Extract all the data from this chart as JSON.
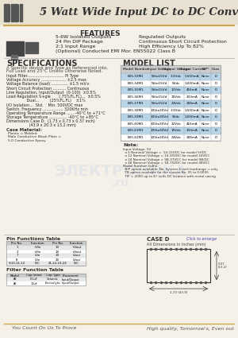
{
  "title": "5 Watt Wide Input DC to DC Converters",
  "bg_color": "#f5f0e8",
  "header_line_color": "#c8a84b",
  "features_title": "FEATURES",
  "features_left": [
    "5-6W Isolated Outputs",
    "24 Pin DIP Package",
    "2:1 Input Range",
    "(Optional) Conducted EMI Mor. EN55022 Class B"
  ],
  "features_right": [
    "Regulated Outputs",
    "Continuous Short Circuit Protection",
    "High Efficiency Up To 82%"
  ],
  "specs_title": "SPECIFICATIONS",
  "specs_subtitle": "A Specific device and Type as Referenced into,",
  "specs_subtitle2": "Full Load and 25°C Unless Otherwise Noted.",
  "specs": [
    "Input Filter............................... Pi Type",
    "Voltage Accuracy ..................... ±2.5 max",
    "Voltage Balance (load) .............. ±1.5 mV+",
    "Short Circuit Protection ........... Continuous",
    "Line Regulation, Input/Output  (0-100)  ±0.5%",
    "Load Regulation S+gle       (.75%FL,FL)...  ±0.5%",
    "                 Dual...         (25%FL,FL)    ±1%",
    "I/O Isolation...  Std.    Min. 500VDC max",
    "Switch. Frequency ................. 320KHz min",
    "Operating Temperature Range ...... -40°C to +71°C",
    "Storage Temperature ............... -40°C to +85°C",
    "Dimensions Case D:  (1.73 x 0.73 x 0.37 inch)",
    "                   (43.9 x 20.3 x 13.2 mm)"
  ],
  "case_materials": "Case Material:",
  "case_mat1": "Plastic = Molded",
  "case_mat3": "Male Conductive Black Plate =",
  "case_mat5": "5.0 Conductive Epoxy",
  "model_list_title": "MODEL LIST",
  "model_headers": [
    "Model Number",
    "Input Voltage",
    "Output Voltage",
    "Output Current",
    "NIP*",
    "Case"
  ],
  "model_rows": [
    [
      "E05-53M1",
      "5Vto15Vd",
      "3.3Vdc",
      "1,500mA",
      "None",
      "D"
    ],
    [
      "E05-54M1",
      "5Vto15Vd",
      "5Vdc",
      "1,000mA",
      "None",
      "D"
    ],
    [
      "E05-55M1",
      "5Vto15Vd",
      "12Vdc",
      "416mA",
      "None",
      "D"
    ],
    [
      "E05-56M1",
      "5Vto15Vd",
      "15Vdc",
      "333mA",
      "None",
      "D"
    ],
    [
      "E05-57M1",
      "5Vto15Vd",
      "24Vdc",
      "208mA",
      "None",
      "D"
    ],
    [
      "E05-58M1",
      "10Vto30Vd",
      "3.3Vdc",
      "1,500mA",
      "None",
      "D"
    ],
    [
      "E05-59M1",
      "10Vto30Vd",
      "5Vdc",
      "1,000mA",
      "None",
      "D"
    ],
    [
      "E05-60M1",
      "10Vto30Vd",
      "12Vdc",
      "416mA",
      "None",
      "D"
    ],
    [
      "E05-61M1",
      "10Vto30Vd",
      "15Vdc",
      "333mA",
      "None",
      "D"
    ],
    [
      "E05-62M1",
      "10Vto30Vd",
      "24Vdc",
      "208mA",
      "None",
      "D"
    ]
  ],
  "model_alt_rows": [
    0,
    2,
    4,
    6,
    8
  ],
  "notes_title": "Note:",
  "notes": [
    "Input Voltage: 5V",
    "  o 5 Nominal Voltage =  5V-15VDC for model 5VDC",
    "  o 12 Nominal Voltage = 10-30VDC for model 24VDC",
    "  o 24 Nominal Voltage = 9B-37VDC for model 9B/DC",
    "  o 48 Nominal Voltage = 18-75VDC for model 48VDC",
    "Model Number Suffix",
    "  NIP option available: No. System 4-inch leadrange = only",
    "  TB option available for the closest No. 25 to 0.0005",
    "  TIF = 2000 up to 47 volts DC location with metal casing"
  ],
  "bottom_tables_title1": "Pin Functions Table",
  "bottom_tables_title2": "Filter Function Table",
  "case_d_title": "CASE D",
  "case_d_subtitle": "All Dimensions in Inches (mm)",
  "footer_left": "You Count On Us To Prove",
  "footer_right": "High quality, Tomorrow's, Even out",
  "highlight_row_color": "#b8d4e8",
  "table_border_color": "#999999",
  "watermark_color": [
    0.7,
    0.8,
    0.9,
    0.25
  ]
}
